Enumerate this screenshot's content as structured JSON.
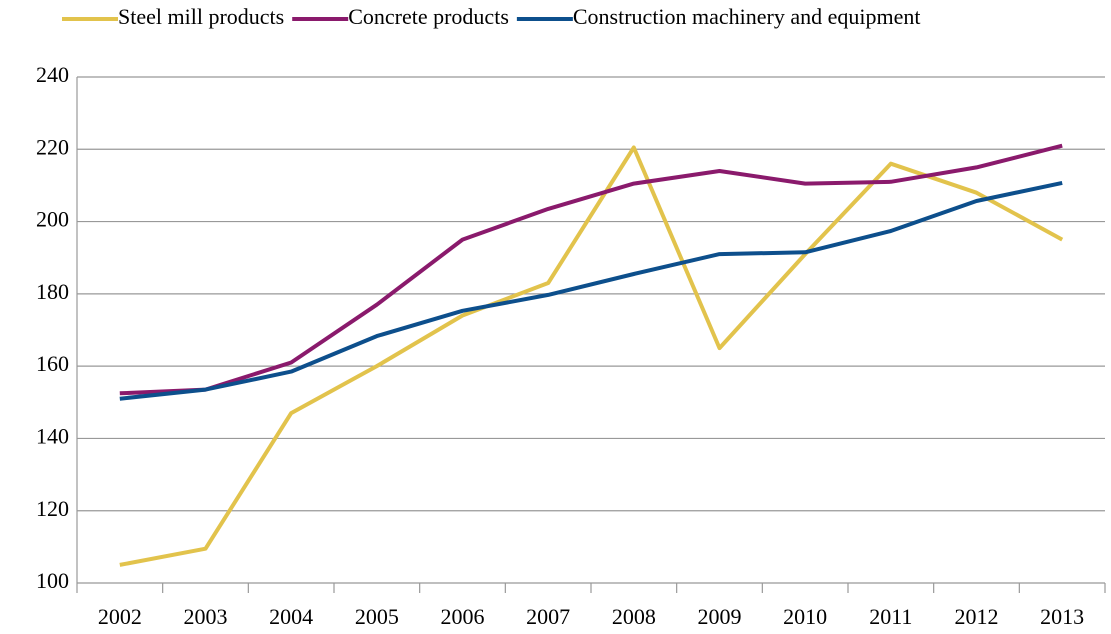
{
  "chart_data": {
    "type": "line",
    "categories": [
      "2002",
      "2003",
      "2004",
      "2005",
      "2006",
      "2007",
      "2008",
      "2009",
      "2010",
      "2011",
      "2012",
      "2013"
    ],
    "series": [
      {
        "name": "Steel mill products",
        "color": "#e2c34c",
        "values": [
          105,
          109.5,
          147,
          160,
          174,
          183,
          220.5,
          165,
          191,
          216,
          208,
          195
        ]
      },
      {
        "name": "Concrete products",
        "color": "#8a1a6c",
        "values": [
          152.5,
          153.5,
          161,
          177,
          195,
          203.5,
          210.5,
          214,
          210.5,
          211,
          215,
          221
        ]
      },
      {
        "name": "Construction machinery and equipment",
        "color": "#0d4f8c",
        "values": [
          151,
          153.5,
          158.5,
          168.3,
          175.3,
          179.7,
          185.5,
          191,
          191.5,
          197.4,
          205.7,
          210.7
        ]
      }
    ],
    "ylim": [
      100,
      240
    ],
    "yticks": [
      100,
      120,
      140,
      160,
      180,
      200,
      220,
      240
    ],
    "grid": true,
    "legend": "top"
  }
}
